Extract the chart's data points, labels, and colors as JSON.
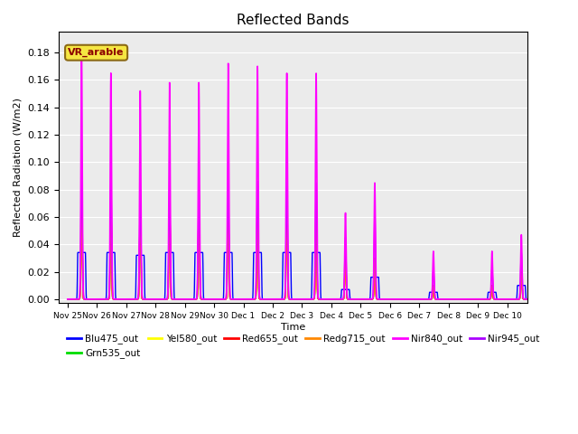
{
  "title": "Reflected Bands",
  "xlabel": "Time",
  "ylabel": "Reflected Radiation (W/m2)",
  "annotation_text": "VR_arable",
  "ylim": [
    -0.003,
    0.195
  ],
  "series": {
    "Blu475_out": {
      "color": "#0000ff",
      "lw": 1.0
    },
    "Grn535_out": {
      "color": "#00dd00",
      "lw": 1.0
    },
    "Yel580_out": {
      "color": "#ffff00",
      "lw": 1.0
    },
    "Red655_out": {
      "color": "#ff0000",
      "lw": 1.0
    },
    "Redg715_out": {
      "color": "#ff8800",
      "lw": 1.0
    },
    "Nir840_out": {
      "color": "#ff00ff",
      "lw": 1.2
    },
    "Nir945_out": {
      "color": "#aa00ff",
      "lw": 1.0
    }
  },
  "bg_color": "#ebebeb",
  "grid_color": "#ffffff",
  "peak_nir840": [
    0.18,
    0.165,
    0.152,
    0.158,
    0.158,
    0.172,
    0.17,
    0.165,
    0.165,
    0.063,
    0.085,
    0.0,
    0.035,
    0.0,
    0.035,
    0.047
  ],
  "peak_nir945": [
    0.092,
    0.09,
    0.08,
    0.08,
    0.08,
    0.088,
    0.086,
    0.085,
    0.085,
    0.045,
    0.065,
    0.0,
    0.022,
    0.0,
    0.022,
    0.034
  ],
  "peak_others": [
    0.075,
    0.076,
    0.077,
    0.078,
    0.079,
    0.076,
    0.077,
    0.075,
    0.075,
    0.034,
    0.03,
    0.0,
    0.01,
    0.0,
    0.01,
    0.02
  ],
  "peak_blu": [
    0.034,
    0.034,
    0.032,
    0.034,
    0.034,
    0.034,
    0.034,
    0.034,
    0.034,
    0.007,
    0.016,
    0.0,
    0.005,
    0.0,
    0.005,
    0.01
  ],
  "tick_labels": [
    "Nov 25",
    "Nov 26",
    "Nov 27",
    "Nov 28",
    "Nov 29",
    "Nov 30",
    "Dec 1",
    "Dec 2",
    "Dec 3",
    "Dec 4",
    "Dec 5",
    "Dec 6",
    "Dec 7",
    "Dec 8",
    "Dec 9",
    "Dec 10"
  ]
}
